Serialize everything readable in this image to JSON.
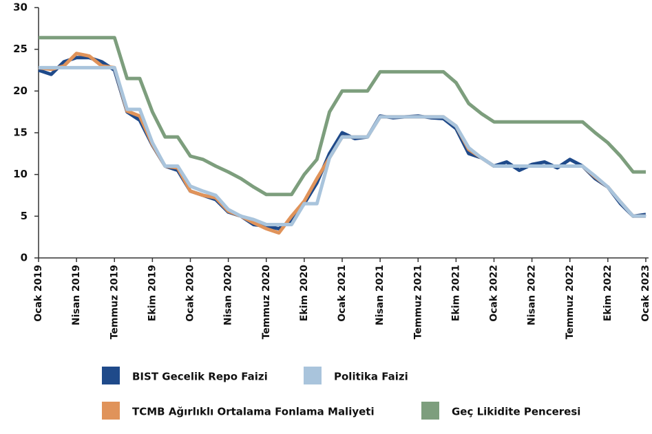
{
  "chart_data": {
    "type": "line",
    "categories": [
      "Ocak 2019",
      null,
      null,
      "Nisan 2019",
      null,
      null,
      "Temmuz 2019",
      null,
      null,
      "Ekim 2019",
      null,
      null,
      "Ocak 2020",
      null,
      null,
      "Nisan 2020",
      null,
      null,
      "Temmuz 2020",
      null,
      null,
      "Ekim 2020",
      null,
      null,
      "Ocak 2021",
      null,
      null,
      "Nisan 2021",
      null,
      null,
      "Temmuz 2021",
      null,
      null,
      "Ekim 2021",
      null,
      null,
      "Ocak 2022",
      null,
      null,
      "Nisan 2022",
      null,
      null,
      "Temmuz 2022",
      null,
      null,
      "Ekim 2022",
      null,
      null,
      "Ocak 2023"
    ],
    "series": [
      {
        "name": "BIST Gecelik Repo Faizi",
        "color": "#1f4a8a",
        "values": [
          22.5,
          22.0,
          23.5,
          24.0,
          24.0,
          23.5,
          22.5,
          17.5,
          16.5,
          13.5,
          11.0,
          10.5,
          8.0,
          7.5,
          7.0,
          5.5,
          5.0,
          4.0,
          3.8,
          3.5,
          4.5,
          6.5,
          9.0,
          12.5,
          15.0,
          14.3,
          14.5,
          17.0,
          16.8,
          16.9,
          17.0,
          16.8,
          16.7,
          15.5,
          12.5,
          12.0,
          11.0,
          11.5,
          10.5,
          11.2,
          11.5,
          10.8,
          11.8,
          11.0,
          9.5,
          8.5,
          6.5,
          5.0,
          5.2
        ]
      },
      {
        "name": "Politika Faizi",
        "color": "#a9c4dc",
        "values": [
          22.8,
          22.8,
          22.8,
          22.8,
          22.8,
          22.8,
          22.8,
          17.8,
          17.8,
          13.8,
          11.0,
          11.0,
          8.6,
          8.0,
          7.5,
          5.8,
          5.0,
          4.6,
          4.0,
          4.0,
          4.0,
          6.5,
          6.5,
          12.0,
          14.5,
          14.5,
          14.5,
          16.9,
          16.9,
          16.9,
          16.9,
          16.9,
          16.9,
          15.8,
          13.2,
          12.0,
          11.0,
          11.0,
          11.0,
          11.0,
          11.0,
          11.0,
          11.0,
          11.0,
          9.8,
          8.5,
          6.7,
          5.0,
          5.0
        ]
      },
      {
        "name": "TCMB Ağırlıklı Ortalama Fonlama Maliyeti",
        "color": "#e0935a",
        "values": [
          22.8,
          22.6,
          23.0,
          24.5,
          24.2,
          23.0,
          22.8,
          17.6,
          17.0,
          13.6,
          11.0,
          10.8,
          8.0,
          7.5,
          7.2,
          5.6,
          5.0,
          4.2,
          3.5,
          3.0,
          5.0,
          6.8,
          9.5,
          12.0,
          14.5,
          14.5,
          14.5,
          16.9,
          16.9,
          16.9,
          16.9,
          16.9,
          16.9,
          15.8,
          13.0,
          12.0,
          11.0,
          11.0,
          11.0,
          11.0,
          11.0,
          11.0,
          11.0,
          11.0,
          9.7,
          8.5,
          6.7,
          5.0,
          5.0
        ]
      },
      {
        "name": "Geç Likidite Penceresi",
        "color": "#7d9e7d",
        "values": [
          26.4,
          26.4,
          26.4,
          26.4,
          26.4,
          26.4,
          26.4,
          21.5,
          21.5,
          17.5,
          14.5,
          14.5,
          12.2,
          11.8,
          11.0,
          10.3,
          9.5,
          8.5,
          7.6,
          7.6,
          7.6,
          10.0,
          11.8,
          17.5,
          20.0,
          20.0,
          20.0,
          22.3,
          22.3,
          22.3,
          22.3,
          22.3,
          22.3,
          21.0,
          18.5,
          17.3,
          16.3,
          16.3,
          16.3,
          16.3,
          16.3,
          16.3,
          16.3,
          16.3,
          15.0,
          13.8,
          12.2,
          10.3,
          10.3
        ]
      }
    ],
    "ylim": [
      0,
      30
    ],
    "yticks": [
      0,
      5,
      10,
      15,
      20,
      25,
      30
    ]
  }
}
